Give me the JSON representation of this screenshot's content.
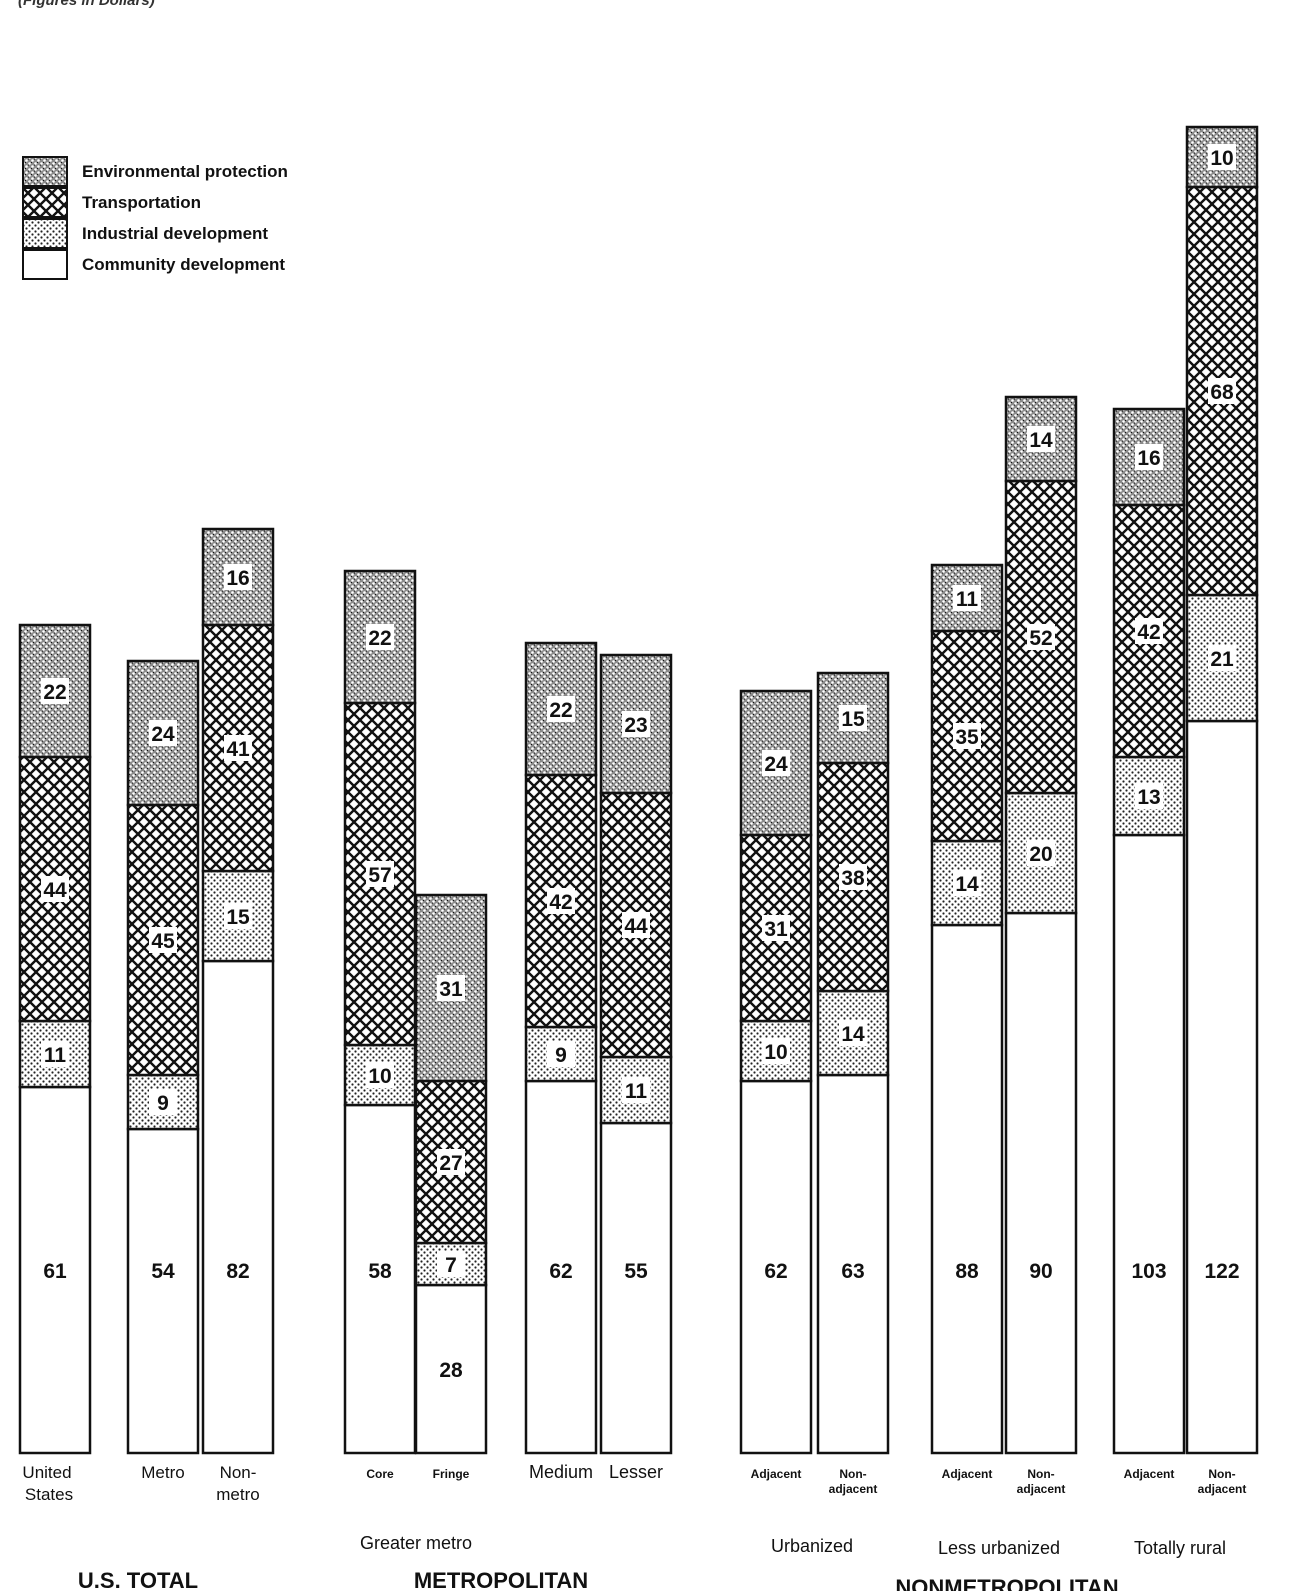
{
  "header": {
    "subtitle": "(Figures in Dollars)"
  },
  "legend": [
    {
      "key": "env",
      "label": "Environmental protection",
      "pattern": "dense-dots"
    },
    {
      "key": "trans",
      "label": "Transportation",
      "pattern": "crosshatch"
    },
    {
      "key": "ind",
      "label": "Industrial development",
      "pattern": "light-dots"
    },
    {
      "key": "comm",
      "label": "Community development",
      "pattern": "white"
    }
  ],
  "colors": {
    "ink": "#111111",
    "paper": "#ffffff"
  },
  "chart_data": {
    "type": "bar",
    "stacked": true,
    "unit": "Dollars",
    "series_order_bottom_to_top": [
      "Community development",
      "Industrial development",
      "Transportation",
      "Environmental protection"
    ],
    "bars": [
      {
        "label": "United States",
        "community": 61,
        "industrial": 11,
        "transportation": 44,
        "environmental": 22
      },
      {
        "label": "Metro",
        "community": 54,
        "industrial": 9,
        "transportation": 45,
        "environmental": 24
      },
      {
        "label": "Non-metro",
        "community": 82,
        "industrial": 15,
        "transportation": 41,
        "environmental": 16
      },
      {
        "label": "Core",
        "community": 58,
        "industrial": 10,
        "transportation": 57,
        "environmental": 22
      },
      {
        "label": "Fringe",
        "community": 28,
        "industrial": 7,
        "transportation": 27,
        "environmental": 31
      },
      {
        "label": "Medium",
        "community": 62,
        "industrial": 9,
        "transportation": 42,
        "environmental": 22
      },
      {
        "label": "Lesser",
        "community": 55,
        "industrial": 11,
        "transportation": 44,
        "environmental": 23
      },
      {
        "label": "Adjacent",
        "community": 62,
        "industrial": 10,
        "transportation": 31,
        "environmental": 24
      },
      {
        "label": "Non-adjacent",
        "community": 63,
        "industrial": 14,
        "transportation": 38,
        "environmental": 15
      },
      {
        "label": "Adjacent",
        "community": 88,
        "industrial": 14,
        "transportation": 35,
        "environmental": 11
      },
      {
        "label": "Non-adjacent",
        "community": 90,
        "industrial": 20,
        "transportation": 52,
        "environmental": 14
      },
      {
        "label": "Adjacent",
        "community": 103,
        "industrial": 13,
        "transportation": 42,
        "environmental": 16
      },
      {
        "label": "Non-adjacent",
        "community": 122,
        "industrial": 21,
        "transportation": 68,
        "environmental": 10
      }
    ],
    "subgroups": [
      {
        "label": "Greater metro",
        "bars": [
          "Core",
          "Fringe"
        ]
      },
      {
        "label": "Urbanized",
        "bars": [
          "Adjacent",
          "Non-adjacent"
        ]
      },
      {
        "label": "Less urbanized",
        "bars": [
          "Adjacent",
          "Non-adjacent"
        ]
      },
      {
        "label": "Totally rural",
        "bars": [
          "Adjacent",
          "Non-adjacent"
        ]
      }
    ],
    "groups": [
      {
        "label": "U.S. TOTAL"
      },
      {
        "label": "METROPOLITAN"
      },
      {
        "label": "NONMETROPOLITAN"
      }
    ]
  }
}
